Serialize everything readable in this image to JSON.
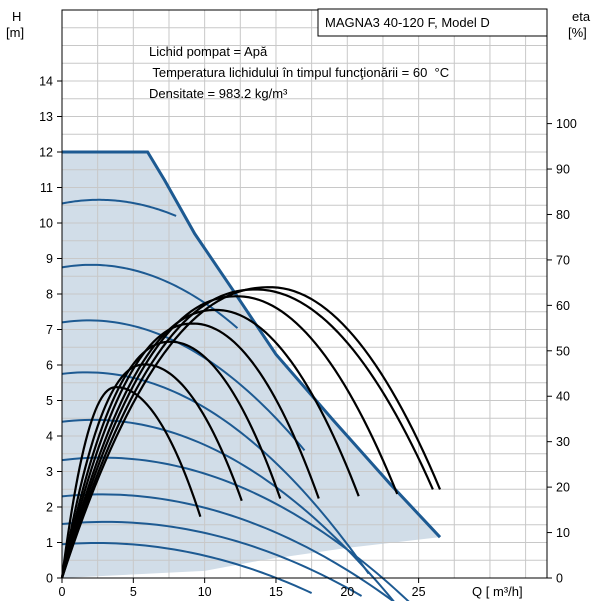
{
  "chart_data": {
    "type": "line",
    "title": "MAGNA3 40-120 F, Model D",
    "left_axis_label": [
      "H",
      "[m]"
    ],
    "right_axis_label": [
      "eta",
      "[%]"
    ],
    "x_axis_label": "Q [ m³/h]",
    "annotations": [
      "Lichid pompat = Apă",
      " Temperatura lichidului în timpul funcţionării = 60  °C",
      "Densitate = 983.2  kg/m³"
    ],
    "xlim": [
      0,
      34
    ],
    "ylim": [
      0,
      16
    ],
    "eta_lim": [
      0,
      125
    ],
    "x_ticks": [
      0,
      5,
      10,
      15,
      20,
      25
    ],
    "y_ticks": [
      0,
      1,
      2,
      3,
      4,
      5,
      6,
      7,
      8,
      9,
      10,
      11,
      12,
      13,
      14
    ],
    "eta_ticks": [
      0,
      10,
      20,
      30,
      40,
      50,
      60,
      70,
      80,
      90,
      100
    ],
    "grid": true,
    "colors": {
      "region_fill": "#d1dde8",
      "head_curve": "#1d5a92",
      "envelope": "#1d5a92",
      "efficiency_curve": "#000000",
      "grid": "#c8c8c8"
    },
    "operating_region": {
      "boundary": [
        [
          0,
          0
        ],
        [
          0,
          12.0
        ],
        [
          6.0,
          12.0
        ],
        [
          7.2,
          11.2
        ],
        [
          9.3,
          9.7
        ],
        [
          12.0,
          8.1
        ],
        [
          15.0,
          6.3
        ],
        [
          19.0,
          4.45
        ],
        [
          23.0,
          2.65
        ],
        [
          26.5,
          1.15
        ],
        [
          20.0,
          0.85
        ],
        [
          14.0,
          0.5
        ],
        [
          10.0,
          0.2
        ]
      ]
    },
    "head_curves": [
      {
        "h0": 10.55,
        "qmax": 8.0,
        "k": 0.0155,
        "a": 0.08
      },
      {
        "h0": 8.75,
        "qmax": 12.3,
        "k": 0.017,
        "a": 0.07
      },
      {
        "h0": 7.2,
        "qmax": 17.0,
        "k": 0.016,
        "a": 0.06
      },
      {
        "h0": 5.75,
        "qmax": 21.5,
        "k": 0.0145,
        "a": 0.05
      },
      {
        "h0": 4.4,
        "qmax": 24.0,
        "k": 0.0115,
        "a": 0.05
      },
      {
        "h0": 3.32,
        "qmax": 25.0,
        "k": 0.0088,
        "a": 0.05
      },
      {
        "h0": 2.3,
        "qmax": 24.5,
        "k": 0.0072,
        "a": 0.04
      },
      {
        "h0": 1.52,
        "qmax": 21.0,
        "k": 0.0065,
        "a": 0.04
      },
      {
        "h0": 0.95,
        "qmax": 17.5,
        "k": 0.0062,
        "a": 0.03
      }
    ],
    "efficiency_curves": [
      {
        "peak_q": 3.8,
        "peak_eta": 42,
        "q_end": 9.7,
        "eta_end": 13.5
      },
      {
        "peak_q": 5.8,
        "peak_eta": 47,
        "q_end": 12.6,
        "eta_end": 17
      },
      {
        "peak_q": 7.6,
        "peak_eta": 52,
        "q_end": 15.3,
        "eta_end": 17.5
      },
      {
        "peak_q": 9.2,
        "peak_eta": 56,
        "q_end": 18.0,
        "eta_end": 17.5
      },
      {
        "peak_q": 10.8,
        "peak_eta": 59,
        "q_end": 20.8,
        "eta_end": 18
      },
      {
        "peak_q": 12.3,
        "peak_eta": 62,
        "q_end": 23.5,
        "eta_end": 18.5
      },
      {
        "peak_q": 13.6,
        "peak_eta": 63.5,
        "q_end": 26.0,
        "eta_end": 19.5
      },
      {
        "peak_q": 14.6,
        "peak_eta": 64,
        "q_end": 26.5,
        "eta_end": 19.5
      }
    ]
  }
}
